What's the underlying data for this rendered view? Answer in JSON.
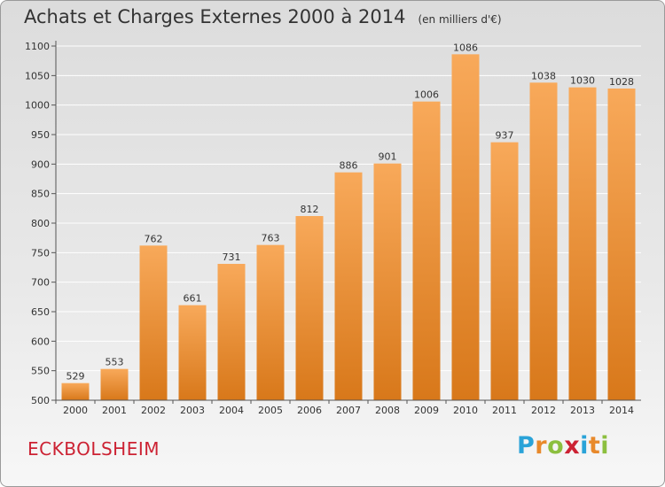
{
  "title": "Achats et Charges Externes 2000 à 2014",
  "unit": "(en milliers d'€)",
  "commune": "ECKBOLSHEIM",
  "logo": {
    "letters": [
      "P",
      "r",
      "o",
      "x",
      "i",
      "t",
      "i"
    ],
    "colors": [
      "#2aa3d8",
      "#e8892b",
      "#8cbf3f",
      "#cc2233",
      "#2aa3d8",
      "#e8892b",
      "#8cbf3f"
    ]
  },
  "colors": {
    "bar": "#f0922e",
    "bar_light": "#f8a95a",
    "bar_dark": "#d8781a",
    "grid": "#ffffff",
    "text": "#333333"
  },
  "chart_data": {
    "type": "bar",
    "categories": [
      "2000",
      "2001",
      "2002",
      "2003",
      "2004",
      "2005",
      "2006",
      "2007",
      "2008",
      "2009",
      "2010",
      "2011",
      "2012",
      "2013",
      "2014"
    ],
    "values": [
      529,
      553,
      762,
      661,
      731,
      763,
      812,
      886,
      901,
      1006,
      1086,
      937,
      1038,
      1030,
      1028
    ],
    "ylim": [
      500,
      1100
    ],
    "yticks": [
      500,
      550,
      600,
      650,
      700,
      750,
      800,
      850,
      900,
      950,
      1000,
      1050,
      1100
    ],
    "grid": true
  }
}
